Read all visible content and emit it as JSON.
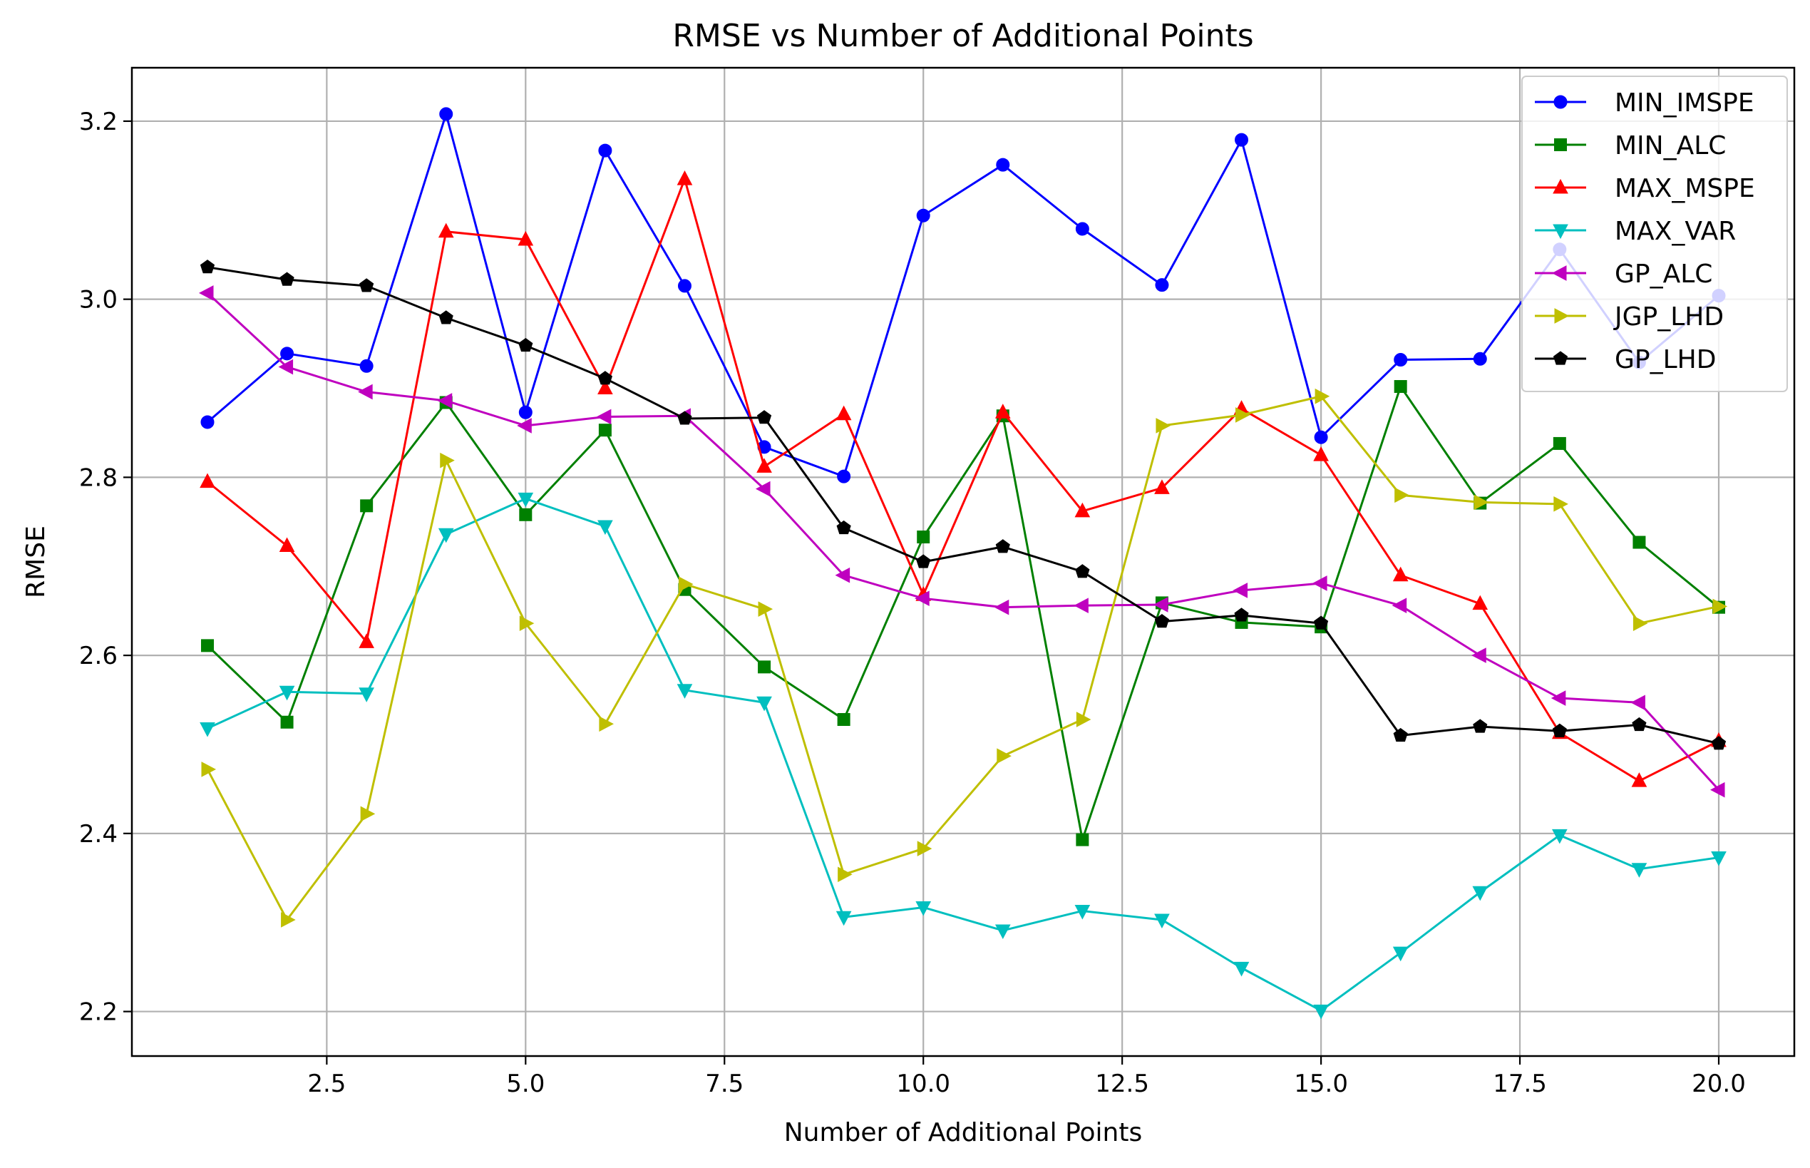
{
  "chart_data": {
    "type": "line",
    "title": "RMSE vs Number of Additional Points",
    "xlabel": "Number of Additional Points",
    "ylabel": "RMSE",
    "xlim": [
      0.05,
      20.95
    ],
    "ylim": [
      2.15,
      3.26
    ],
    "xticks": [
      2.5,
      5.0,
      7.5,
      10.0,
      12.5,
      15.0,
      17.5,
      20.0
    ],
    "xtick_labels": [
      "2.5",
      "5.0",
      "7.5",
      "10.0",
      "12.5",
      "15.0",
      "17.5",
      "20.0"
    ],
    "yticks": [
      2.2,
      2.4,
      2.6,
      2.8,
      3.0,
      3.2
    ],
    "ytick_labels": [
      "2.2",
      "2.4",
      "2.6",
      "2.8",
      "3.0",
      "3.2"
    ],
    "grid": true,
    "legend_position": "top-right",
    "x": [
      1,
      2,
      3,
      4,
      5,
      6,
      7,
      8,
      9,
      10,
      11,
      12,
      13,
      14,
      15,
      16,
      17,
      18,
      19,
      20
    ],
    "series": [
      {
        "name": "MIN_IMSPE",
        "color": "#0000ff",
        "marker": "circle",
        "values": [
          2.862,
          2.939,
          2.925,
          3.208,
          2.873,
          3.167,
          3.015,
          2.834,
          2.801,
          3.094,
          3.151,
          3.079,
          3.016,
          3.179,
          2.845,
          2.932,
          2.933,
          3.056,
          2.929,
          3.004
        ]
      },
      {
        "name": "MIN_ALC",
        "color": "#008000",
        "marker": "square",
        "values": [
          2.611,
          2.525,
          2.768,
          2.884,
          2.758,
          2.853,
          2.674,
          2.587,
          2.528,
          2.733,
          2.869,
          2.393,
          2.659,
          2.637,
          2.632,
          2.902,
          2.771,
          2.838,
          2.727,
          2.654
        ]
      },
      {
        "name": "MAX_MSPE",
        "color": "#ff0000",
        "marker": "triangle-up",
        "values": [
          2.795,
          2.723,
          2.615,
          3.076,
          3.067,
          2.9,
          3.135,
          2.812,
          2.871,
          2.668,
          2.873,
          2.762,
          2.788,
          2.877,
          2.825,
          2.69,
          2.658,
          2.513,
          2.459,
          2.504
        ]
      },
      {
        "name": "MAX_VAR",
        "color": "#00bfbf",
        "marker": "triangle-down",
        "values": [
          2.518,
          2.559,
          2.557,
          2.736,
          2.776,
          2.745,
          2.561,
          2.547,
          2.306,
          2.317,
          2.291,
          2.313,
          2.303,
          2.249,
          2.201,
          2.266,
          2.334,
          2.398,
          2.36,
          2.373
        ]
      },
      {
        "name": "GP_ALC",
        "color": "#bf00bf",
        "marker": "triangle-left",
        "values": [
          3.007,
          2.924,
          2.896,
          2.886,
          2.858,
          2.868,
          2.869,
          2.787,
          2.69,
          2.664,
          2.654,
          2.656,
          2.657,
          2.673,
          2.681,
          2.656,
          2.6,
          2.552,
          2.547,
          2.449
        ]
      },
      {
        "name": "JGP_LHD",
        "color": "#bfbf00",
        "marker": "triangle-right",
        "values": [
          2.472,
          2.303,
          2.422,
          2.819,
          2.636,
          2.523,
          2.68,
          2.652,
          2.354,
          2.383,
          2.487,
          2.528,
          2.858,
          2.87,
          2.891,
          2.78,
          2.772,
          2.77,
          2.636,
          2.655
        ]
      },
      {
        "name": "GP_LHD",
        "color": "#000000",
        "marker": "pentagon",
        "values": [
          3.036,
          3.022,
          3.015,
          2.979,
          2.948,
          2.911,
          2.866,
          2.867,
          2.743,
          2.705,
          2.722,
          2.694,
          2.638,
          2.645,
          2.636,
          2.51,
          2.52,
          2.515,
          2.522,
          2.501
        ]
      }
    ]
  }
}
